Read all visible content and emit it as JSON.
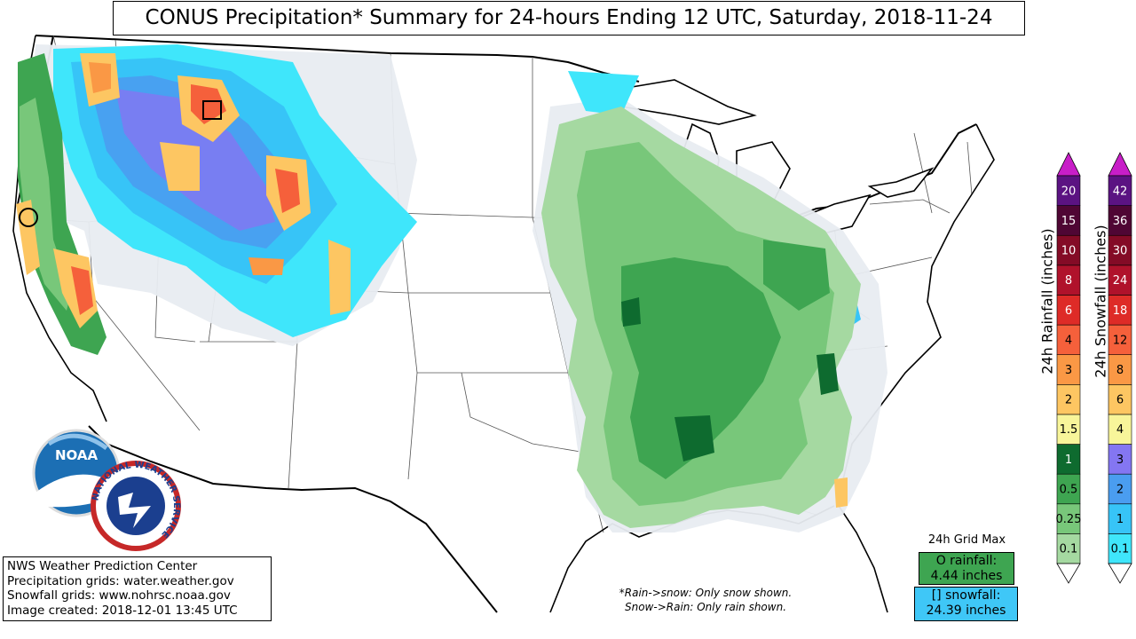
{
  "title": "CONUS Precipitation* Summary for 24-hours Ending 12 UTC, Saturday, 2018-11-24",
  "credit": {
    "line1": "NWS Weather Prediction Center",
    "line2": "Precipitation grids: water.weather.gov",
    "line3": "Snowfall grids: www.nohrsc.noaa.gov",
    "line4": "Image created: 2018-12-01 13:45 UTC"
  },
  "note": {
    "line1": "*Rain->snow: Only snow shown.",
    "line2": "Snow->Rain: Only rain shown."
  },
  "grid_max": {
    "title": "24h Grid Max",
    "rain_label": "O rainfall:",
    "rain_value": "4.44 inches",
    "snow_label": "[] snowfall:",
    "snow_value": "24.39 inches"
  },
  "logos": {
    "noaa_text": "NOAA",
    "nws_text": "NATIONAL WEATHER SERVICE"
  },
  "rain_scale": {
    "label": "24h Rainfall (inches)",
    "levels": [
      {
        "label": "0.1",
        "color": "#a5d9a1"
      },
      {
        "label": "0.25",
        "color": "#78c77a"
      },
      {
        "label": "0.5",
        "color": "#3ea551"
      },
      {
        "label": "1",
        "color": "#0e6b2f"
      },
      {
        "label": "1.5",
        "color": "#f8f59a"
      },
      {
        "label": "2",
        "color": "#fdc662"
      },
      {
        "label": "3",
        "color": "#fa9845"
      },
      {
        "label": "4",
        "color": "#f5603b"
      },
      {
        "label": "6",
        "color": "#de2b27"
      },
      {
        "label": "8",
        "color": "#b0122b"
      },
      {
        "label": "10",
        "color": "#840b26"
      },
      {
        "label": "15",
        "color": "#4f0634"
      },
      {
        "label": "20",
        "color": "#5b1382"
      }
    ],
    "top_color": "#c81ec8"
  },
  "snow_scale": {
    "label": "24h Snowfall (inches)",
    "levels": [
      {
        "label": "0.1",
        "color": "#3fe6fb"
      },
      {
        "label": "1",
        "color": "#37c4f7"
      },
      {
        "label": "2",
        "color": "#4a9df0"
      },
      {
        "label": "3",
        "color": "#8476f2"
      },
      {
        "label": "4",
        "color": "#f8f59a"
      },
      {
        "label": "6",
        "color": "#fdc662"
      },
      {
        "label": "8",
        "color": "#fa9845"
      },
      {
        "label": "12",
        "color": "#f5603b"
      },
      {
        "label": "18",
        "color": "#de2b27"
      },
      {
        "label": "24",
        "color": "#b0122b"
      },
      {
        "label": "30",
        "color": "#840b26"
      },
      {
        "label": "36",
        "color": "#4f0634"
      },
      {
        "label": "42",
        "color": "#5b1382"
      }
    ],
    "top_color": "#c81ec8"
  }
}
